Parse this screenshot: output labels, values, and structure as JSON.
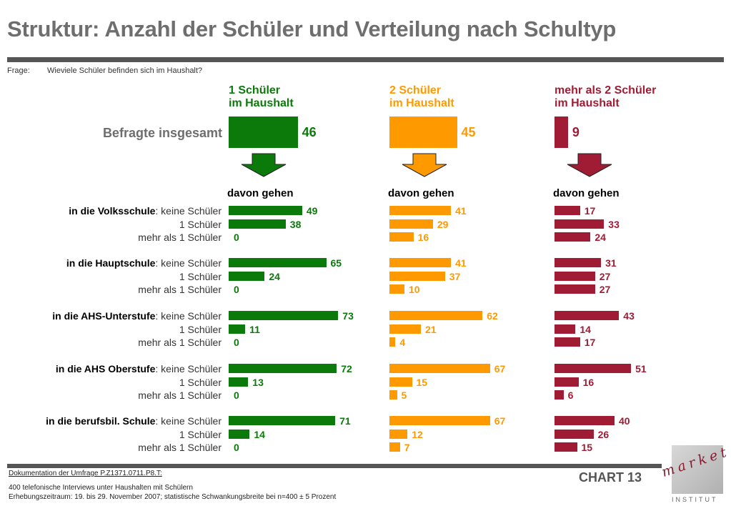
{
  "title": "Struktur: Anzahl der Schüler und Verteilung nach Schultyp",
  "question": {
    "label": "Frage:",
    "text": "Wieviele Schüler befinden sich im Haushalt?"
  },
  "colors": {
    "green": "#0b7a0b",
    "orange": "#ff9900",
    "crimson": "#a01c34",
    "gray_text": "#6e6e6e"
  },
  "icons": {
    "arrow": "down-arrow-icon"
  },
  "chart_data": {
    "type": "bar",
    "orientation": "horizontal",
    "total_label": "Befragte insgesamt",
    "davon_label": "davon gehen",
    "columns": [
      {
        "head_line1": "1 Schüler",
        "head_line2": "im Haushalt",
        "total": 46,
        "color": "#0b7a0b"
      },
      {
        "head_line1": "2 Schüler",
        "head_line2": "im Haushalt",
        "total": 45,
        "color": "#ff9900"
      },
      {
        "head_line1": "mehr als 2 Schüler",
        "head_line2": "im Haushalt",
        "total": 9,
        "color": "#a01c34"
      }
    ],
    "groups": [
      {
        "name": "in die Volksschule",
        "values": [
          [
            49,
            38,
            0
          ],
          [
            41,
            29,
            16
          ],
          [
            17,
            33,
            24
          ]
        ]
      },
      {
        "name": "in die Hauptschule",
        "values": [
          [
            65,
            24,
            0
          ],
          [
            41,
            37,
            10
          ],
          [
            31,
            27,
            27
          ]
        ]
      },
      {
        "name": "in die AHS-Unterstufe",
        "values": [
          [
            73,
            11,
            0
          ],
          [
            62,
            21,
            4
          ],
          [
            43,
            14,
            17
          ]
        ]
      },
      {
        "name": "in die AHS Oberstufe",
        "values": [
          [
            72,
            13,
            0
          ],
          [
            67,
            15,
            5
          ],
          [
            51,
            16,
            6
          ]
        ]
      },
      {
        "name": "in die berufsbil. Schule",
        "values": [
          [
            71,
            14,
            0
          ],
          [
            67,
            12,
            7
          ],
          [
            40,
            26,
            15
          ]
        ]
      }
    ],
    "sub_labels": [
      ": keine Schüler",
      "1 Schüler",
      "mehr als 1 Schüler"
    ]
  },
  "footer": {
    "doc": "Dokumentation der Umfrage P.Z1371.0711.P8.T:",
    "note1": "400 telefonische Interviews unter Haushalten mit Schülern",
    "note2": "Erhebungszeitraum: 19. bis 29. November 2007; statistische Schwankungsbreite bei n=400 ± 5 Prozent",
    "chart_no": "CHART 13",
    "logo_word": "market",
    "logo_sub": "INSTITUT"
  }
}
